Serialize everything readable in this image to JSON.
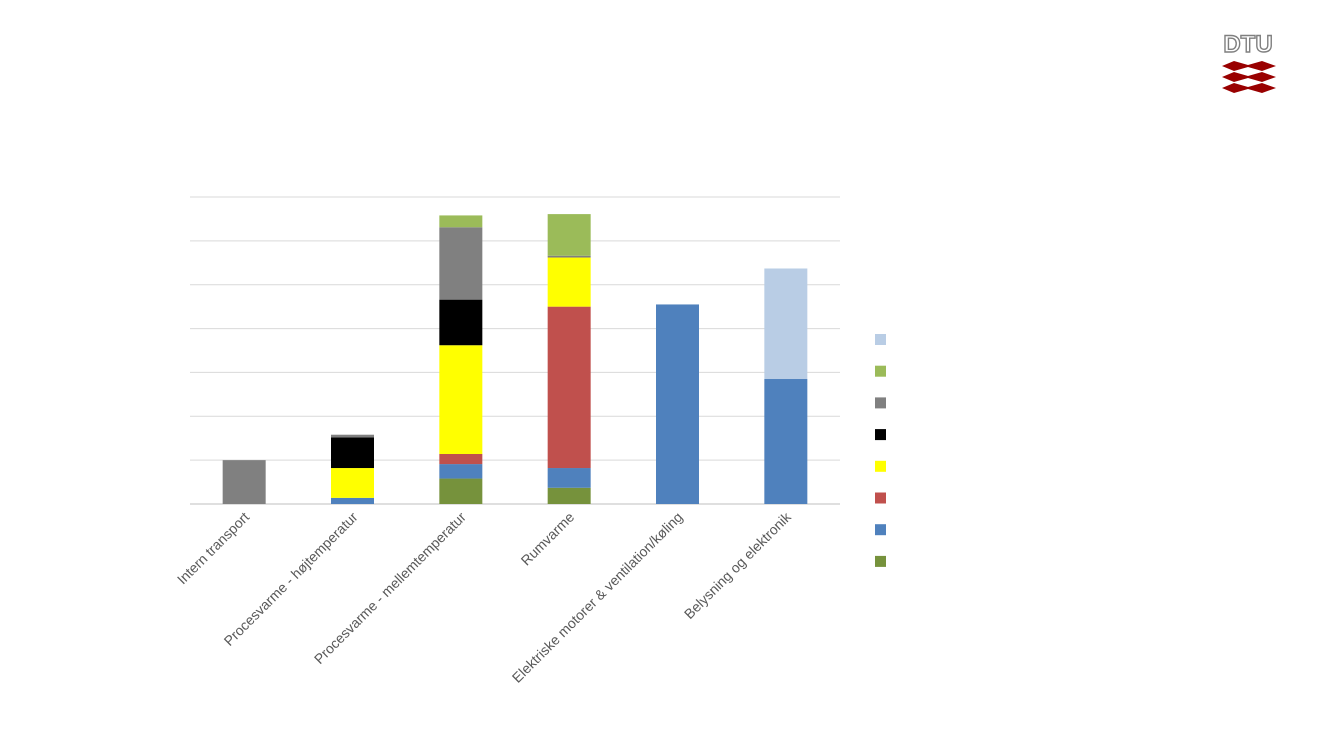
{
  "logo": {
    "text": "DTU"
  },
  "chart_data": {
    "type": "bar",
    "stacked": true,
    "title": "",
    "xlabel": "",
    "ylabel": "",
    "ylim": [
      0,
      7
    ],
    "y_tick_step": 1,
    "grid": true,
    "legend_placement": "right",
    "categories": [
      "Intern transport",
      "Procesvarme - højtemperatur",
      "Procesvarme - mellemtemperatur",
      "Rumvarme",
      "Elektriske motorer & ventilation/køling",
      "Belysning og elektronik"
    ],
    "series": [
      {
        "color": "#76923c",
        "values": [
          0,
          0,
          0.58,
          0.37,
          0,
          0
        ]
      },
      {
        "color": "#4f81bd",
        "values": [
          0,
          0.14,
          0.33,
          0.45,
          4.55,
          2.85
        ]
      },
      {
        "color": "#c0504d",
        "values": [
          0,
          0,
          0.23,
          3.68,
          0,
          0
        ]
      },
      {
        "color": "#ffff00",
        "values": [
          0,
          0.68,
          2.48,
          1.12,
          0,
          0
        ]
      },
      {
        "color": "#000000",
        "values": [
          0,
          0.7,
          1.04,
          0,
          0,
          0
        ]
      },
      {
        "color": "#808080",
        "values": [
          1.0,
          0.06,
          1.65,
          0.04,
          0,
          0
        ]
      },
      {
        "color": "#9bbb59",
        "values": [
          0,
          0,
          0.27,
          0.95,
          0,
          0
        ]
      },
      {
        "color": "#b9cde5",
        "values": [
          0,
          0,
          0,
          0,
          0,
          2.52
        ]
      }
    ]
  }
}
